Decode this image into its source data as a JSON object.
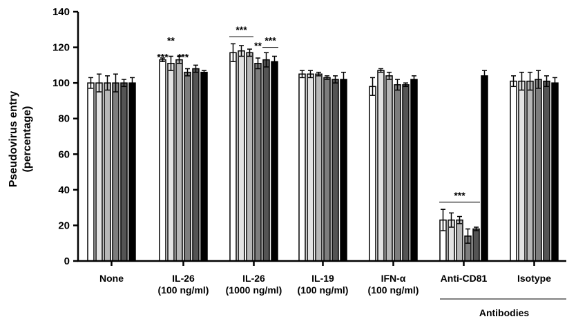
{
  "chart_data": {
    "type": "bar",
    "ylabel_lines": [
      "Pseudovirus entry",
      "(percentage)"
    ],
    "ylim": [
      0,
      140
    ],
    "yticks": [
      "0",
      "20",
      "40",
      "60",
      "80",
      "100",
      "120",
      "140"
    ],
    "grid": false,
    "categories": [
      [
        "None"
      ],
      [
        "IL-26",
        "(100 ng/ml)"
      ],
      [
        "IL-26",
        "(1000 ng/ml)"
      ],
      [
        "IL-19",
        "(100 ng/ml)"
      ],
      [
        "IFN-α",
        "(100 ng/ml)"
      ],
      [
        "Anti-CD81"
      ],
      [
        "Isotype"
      ]
    ],
    "bar_colors": [
      "#ffffff",
      "#e3e3e3",
      "#b7b7b7",
      "#7d7d7d",
      "#545454",
      "#000000"
    ],
    "values": [
      [
        100,
        100,
        100,
        100,
        100,
        100
      ],
      [
        113,
        111,
        113,
        106,
        108,
        106
      ],
      [
        117,
        118,
        117,
        111,
        113,
        112
      ],
      [
        105,
        105,
        105,
        103,
        102,
        102
      ],
      [
        98,
        107,
        104,
        99,
        99,
        102
      ],
      [
        23,
        23,
        23,
        14,
        18,
        104
      ],
      [
        101,
        101,
        101,
        102,
        101,
        100
      ]
    ],
    "errors": [
      [
        3,
        5,
        4,
        5,
        2,
        3
      ],
      [
        1,
        4,
        2,
        2,
        2,
        1
      ],
      [
        5,
        3,
        2,
        3,
        4,
        3
      ],
      [
        2,
        2,
        1,
        1,
        2,
        4
      ],
      [
        5,
        1,
        2,
        3,
        1,
        2
      ],
      [
        6,
        4,
        2,
        4,
        1,
        3
      ],
      [
        3,
        5,
        5,
        5,
        3,
        3
      ]
    ],
    "annotations": {
      "il26_100_top": "**",
      "il26_100_bottom_left": "***",
      "il26_100_bottom_right": "***",
      "il26_1000_bracket": "***",
      "il26_1000_mid": "**",
      "il26_1000_right_bracket": "***",
      "anticd81_bracket": "***"
    },
    "group_label": "Antibodies"
  }
}
